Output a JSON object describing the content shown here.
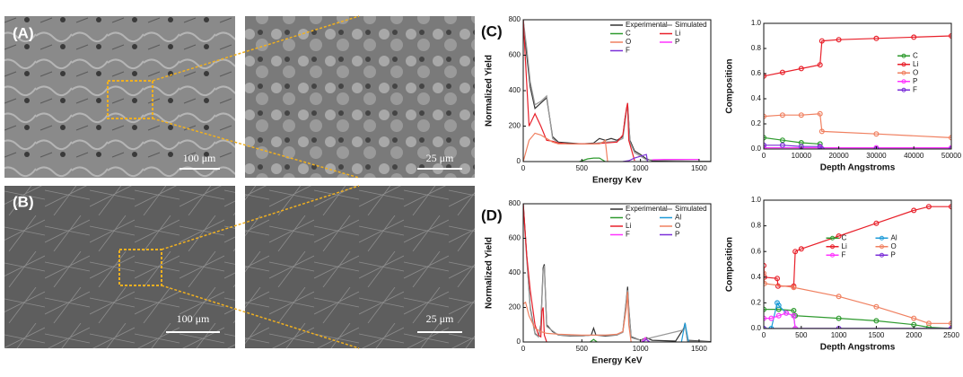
{
  "panels": [
    {
      "label": "(A)",
      "scale_bar": "100 μm"
    },
    {
      "scale_bar": "25 μm"
    },
    {
      "label": "(B)",
      "scale_bar": "100 μm"
    },
    {
      "scale_bar": "25 μm"
    }
  ],
  "chart_data": [
    {
      "type": "line",
      "panel_label": "(C)",
      "xlabel": "Energy Kev",
      "ylabel": "Normalized Yield",
      "xlim": [
        0,
        1600
      ],
      "xticks": [
        0,
        500,
        1000,
        1500
      ],
      "ylim": [
        0,
        800
      ],
      "yticks": [
        0,
        200,
        400,
        600,
        800
      ],
      "legend": "upper right",
      "legend_columns": 2,
      "markers": false,
      "series": [
        {
          "name": "Experimental",
          "color": "#333333",
          "x": [
            0,
            30,
            60,
            100,
            150,
            200,
            250,
            300,
            400,
            500,
            600,
            650,
            700,
            750,
            800,
            850,
            870,
            890,
            910,
            950,
            1000,
            1050,
            1100,
            1200,
            1400,
            1600
          ],
          "values": [
            800,
            600,
            420,
            300,
            330,
            360,
            140,
            110,
            105,
            100,
            105,
            130,
            120,
            130,
            120,
            140,
            250,
            320,
            120,
            60,
            40,
            15,
            5,
            3,
            2,
            1
          ]
        },
        {
          "name": "Simulated",
          "color": "#999999",
          "x": [
            0,
            30,
            60,
            100,
            150,
            200,
            250,
            300,
            400,
            500,
            600,
            700,
            800,
            850,
            880,
            890,
            910,
            950,
            1050,
            1600
          ],
          "values": [
            800,
            640,
            450,
            320,
            340,
            370,
            130,
            105,
            100,
            100,
            102,
            110,
            115,
            130,
            280,
            330,
            110,
            50,
            10,
            0
          ]
        },
        {
          "name": "C",
          "color": "#2e9a2e",
          "x": [
            480,
            550,
            600,
            650,
            700
          ],
          "values": [
            0,
            15,
            20,
            20,
            0
          ]
        },
        {
          "name": "Li",
          "color": "#e8202a",
          "x": [
            0,
            50,
            100,
            150,
            200,
            250,
            300,
            400,
            600,
            800,
            850,
            880,
            890,
            900,
            950
          ],
          "values": [
            800,
            200,
            270,
            200,
            120,
            115,
            105,
            100,
            100,
            110,
            150,
            300,
            330,
            120,
            5
          ]
        },
        {
          "name": "O",
          "color": "#f08060",
          "x": [
            0,
            50,
            100,
            150,
            200,
            250,
            300,
            500,
            650,
            680,
            700,
            720
          ],
          "values": [
            0,
            120,
            160,
            150,
            130,
            110,
            100,
            100,
            100,
            110,
            120,
            0
          ]
        },
        {
          "name": "P",
          "color": "#ff33ff",
          "x": [
            1100,
            1200,
            1300,
            1400,
            1500
          ],
          "values": [
            10,
            12,
            12,
            12,
            12
          ]
        },
        {
          "name": "F",
          "color": "#7b2fd8",
          "x": [
            850,
            900,
            950,
            1000,
            1050,
            1060
          ],
          "values": [
            0,
            5,
            20,
            30,
            40,
            0
          ]
        }
      ]
    },
    {
      "type": "line",
      "xlabel": "Depth Angstroms",
      "ylabel": "Composition",
      "xlim": [
        0,
        50000
      ],
      "xticks": [
        0,
        10000,
        20000,
        30000,
        40000,
        50000
      ],
      "ylim": [
        0,
        1.0
      ],
      "yticks": [
        {
          "value": 0,
          "label": "0.0"
        },
        0.2,
        0.4,
        0.6,
        0.8,
        {
          "value": 1.0,
          "label": "1.0"
        }
      ],
      "legend": "center right",
      "legend_columns": 1,
      "markers": true,
      "series": [
        {
          "name": "C",
          "color": "#2e9a2e",
          "x": [
            0,
            5000,
            10000,
            15000,
            15500,
            30000,
            50000
          ],
          "values": [
            0.09,
            0.07,
            0.05,
            0.04,
            0.0,
            0.0,
            0.0
          ]
        },
        {
          "name": "Li",
          "color": "#e8202a",
          "x": [
            0,
            5000,
            10000,
            15000,
            15500,
            20000,
            30000,
            40000,
            50000
          ],
          "values": [
            0.58,
            0.61,
            0.64,
            0.67,
            0.86,
            0.87,
            0.88,
            0.89,
            0.9
          ]
        },
        {
          "name": "O",
          "color": "#f08060",
          "x": [
            0,
            5000,
            10000,
            15000,
            15500,
            30000,
            50000
          ],
          "values": [
            0.26,
            0.27,
            0.27,
            0.28,
            0.14,
            0.12,
            0.09
          ]
        },
        {
          "name": "P",
          "color": "#ff33ff",
          "x": [
            0,
            15000,
            30000,
            50000
          ],
          "values": [
            0.01,
            0.01,
            0.01,
            0.01
          ]
        },
        {
          "name": "F",
          "color": "#7b2fd8",
          "x": [
            0,
            5000,
            10000,
            15000,
            15500,
            30000,
            50000
          ],
          "values": [
            0.03,
            0.03,
            0.02,
            0.02,
            0.0,
            0.0,
            0.0
          ]
        }
      ]
    },
    {
      "type": "line",
      "panel_label": "(D)",
      "xlabel": "Energy KeV",
      "ylabel": "Normalized Yield",
      "xlim": [
        0,
        1600
      ],
      "xticks": [
        0,
        500,
        1000,
        1500
      ],
      "ylim": [
        0,
        800
      ],
      "yticks": [
        0,
        200,
        400,
        600,
        800
      ],
      "legend": "upper right",
      "legend_columns": 2,
      "markers": false,
      "series": [
        {
          "name": "Experimental",
          "color": "#333333",
          "x": [
            0,
            30,
            60,
            100,
            130,
            150,
            170,
            180,
            200,
            250,
            300,
            400,
            500,
            580,
            600,
            620,
            700,
            800,
            850,
            880,
            890,
            900,
            920,
            1000,
            1050,
            1100,
            1300,
            1370,
            1380,
            1400,
            1600
          ],
          "values": [
            800,
            500,
            200,
            50,
            30,
            100,
            430,
            450,
            100,
            60,
            40,
            35,
            35,
            40,
            80,
            40,
            35,
            40,
            60,
            250,
            320,
            200,
            30,
            10,
            25,
            10,
            5,
            80,
            110,
            10,
            2
          ]
        },
        {
          "name": "Simulated",
          "color": "#999999",
          "x": [
            0,
            30,
            60,
            100,
            130,
            150,
            170,
            180,
            200,
            300,
            500,
            600,
            800,
            850,
            880,
            890,
            900,
            920,
            1000,
            1370,
            1380,
            1400,
            1600
          ],
          "values": [
            780,
            480,
            190,
            45,
            30,
            90,
            410,
            440,
            90,
            40,
            35,
            40,
            40,
            55,
            240,
            300,
            190,
            25,
            10,
            70,
            100,
            5,
            0
          ]
        },
        {
          "name": "C",
          "color": "#2e9a2e",
          "x": [
            570,
            600,
            630
          ],
          "values": [
            0,
            15,
            0
          ]
        },
        {
          "name": "Al",
          "color": "#1e9bd8",
          "x": [
            1350,
            1380,
            1410
          ],
          "values": [
            0,
            110,
            0
          ]
        },
        {
          "name": "Li",
          "color": "#e8202a",
          "x": [
            0,
            30,
            60,
            100,
            130,
            150,
            160,
            170,
            180,
            200
          ],
          "values": [
            800,
            500,
            300,
            100,
            40,
            30,
            180,
            200,
            40,
            0
          ]
        },
        {
          "name": "O",
          "color": "#f08060",
          "x": [
            0,
            20,
            50,
            100,
            150,
            200,
            300,
            500,
            700,
            800,
            850,
            880,
            890,
            900,
            920
          ],
          "values": [
            220,
            230,
            150,
            80,
            60,
            50,
            45,
            40,
            40,
            45,
            60,
            200,
            290,
            100,
            0
          ]
        },
        {
          "name": "F",
          "color": "#ff33ff",
          "x": [
            1010,
            1040,
            1070
          ],
          "values": [
            0,
            25,
            0
          ]
        },
        {
          "name": "P",
          "color": "#7b2fd8",
          "x": [
            1020,
            1050,
            1080
          ],
          "values": [
            0,
            15,
            0
          ]
        }
      ]
    },
    {
      "type": "line",
      "xlabel": "Depth Angstroms",
      "ylabel": "Composition",
      "xlim": [
        0,
        2500
      ],
      "xticks": [
        0,
        500,
        1000,
        1500,
        2000,
        2500
      ],
      "ylim": [
        0,
        1.0
      ],
      "yticks": [
        {
          "value": 0,
          "label": "0.0"
        },
        0.2,
        0.4,
        0.6,
        0.8,
        {
          "value": 1.0,
          "label": "1.0"
        }
      ],
      "legend": "center",
      "legend_columns": 2,
      "markers": true,
      "series": [
        {
          "name": "C",
          "color": "#2e9a2e",
          "x": [
            0,
            200,
            400,
            420,
            1000,
            1500,
            2000,
            2200,
            2500
          ],
          "values": [
            0.15,
            0.15,
            0.14,
            0.1,
            0.08,
            0.06,
            0.03,
            0.01,
            0.0
          ]
        },
        {
          "name": "Al",
          "color": "#1e9bd8",
          "x": [
            0,
            100,
            180,
            200,
            300,
            400,
            420,
            2500
          ],
          "values": [
            0.0,
            0.0,
            0.2,
            0.18,
            0.12,
            0.1,
            0.0,
            0.0
          ]
        },
        {
          "name": "Li",
          "color": "#e8202a",
          "x": [
            0,
            10,
            180,
            190,
            400,
            420,
            500,
            1000,
            1500,
            2000,
            2200,
            2500
          ],
          "values": [
            0.49,
            0.4,
            0.39,
            0.33,
            0.33,
            0.6,
            0.62,
            0.72,
            0.82,
            0.92,
            0.95,
            0.95
          ]
        },
        {
          "name": "O",
          "color": "#f08060",
          "x": [
            0,
            10,
            400,
            1000,
            1500,
            2000,
            2200,
            2500
          ],
          "values": [
            0.43,
            0.35,
            0.32,
            0.25,
            0.17,
            0.08,
            0.04,
            0.04
          ]
        },
        {
          "name": "F",
          "color": "#ff33ff",
          "x": [
            0,
            100,
            200,
            300,
            400,
            420,
            2500
          ],
          "values": [
            0.08,
            0.08,
            0.1,
            0.12,
            0.1,
            0.0,
            0.0
          ]
        },
        {
          "name": "P",
          "color": "#7b2fd8",
          "x": [
            0,
            1000,
            2500
          ],
          "values": [
            0.0,
            0.0,
            0.0
          ]
        }
      ]
    }
  ]
}
